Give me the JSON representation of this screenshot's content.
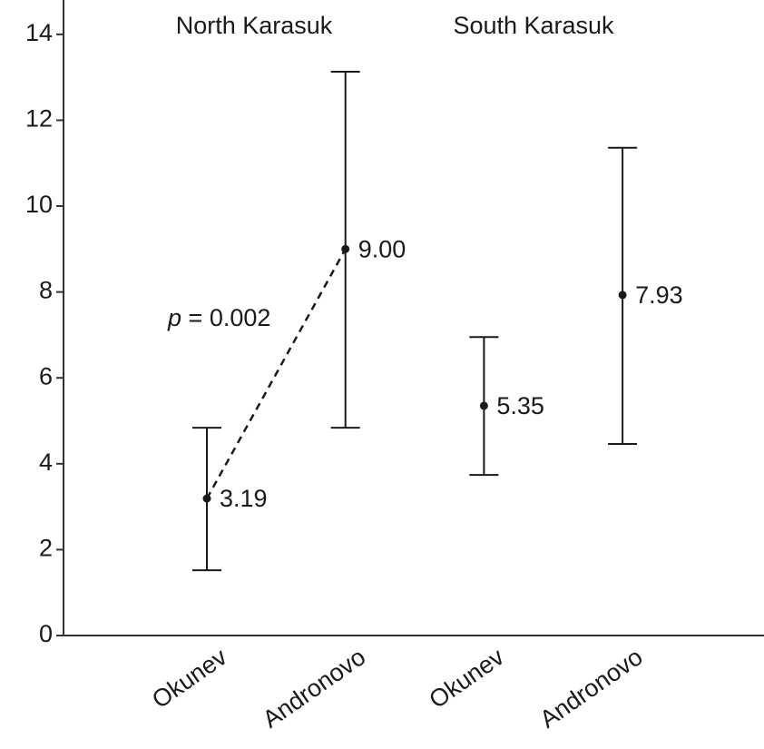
{
  "chart_data": {
    "type": "errorbar",
    "groups": [
      "North Karasuk",
      "South Karasuk"
    ],
    "categories": [
      "Okunev",
      "Andronovo",
      "Okunev",
      "Andronovo"
    ],
    "values": [
      3.19,
      9.0,
      5.35,
      7.93
    ],
    "value_labels": [
      "3.19",
      "9.00",
      "5.35",
      "7.93"
    ],
    "lower": [
      1.52,
      4.84,
      3.74,
      4.46
    ],
    "upper": [
      4.84,
      13.13,
      6.95,
      11.36
    ],
    "color": "#1a1a1a",
    "annotation": {
      "italic": "p",
      "text": "= 0.002"
    },
    "ylim": [
      0,
      14.8
    ],
    "yticks": [
      0,
      2,
      4,
      6,
      8,
      10,
      12,
      14
    ]
  }
}
